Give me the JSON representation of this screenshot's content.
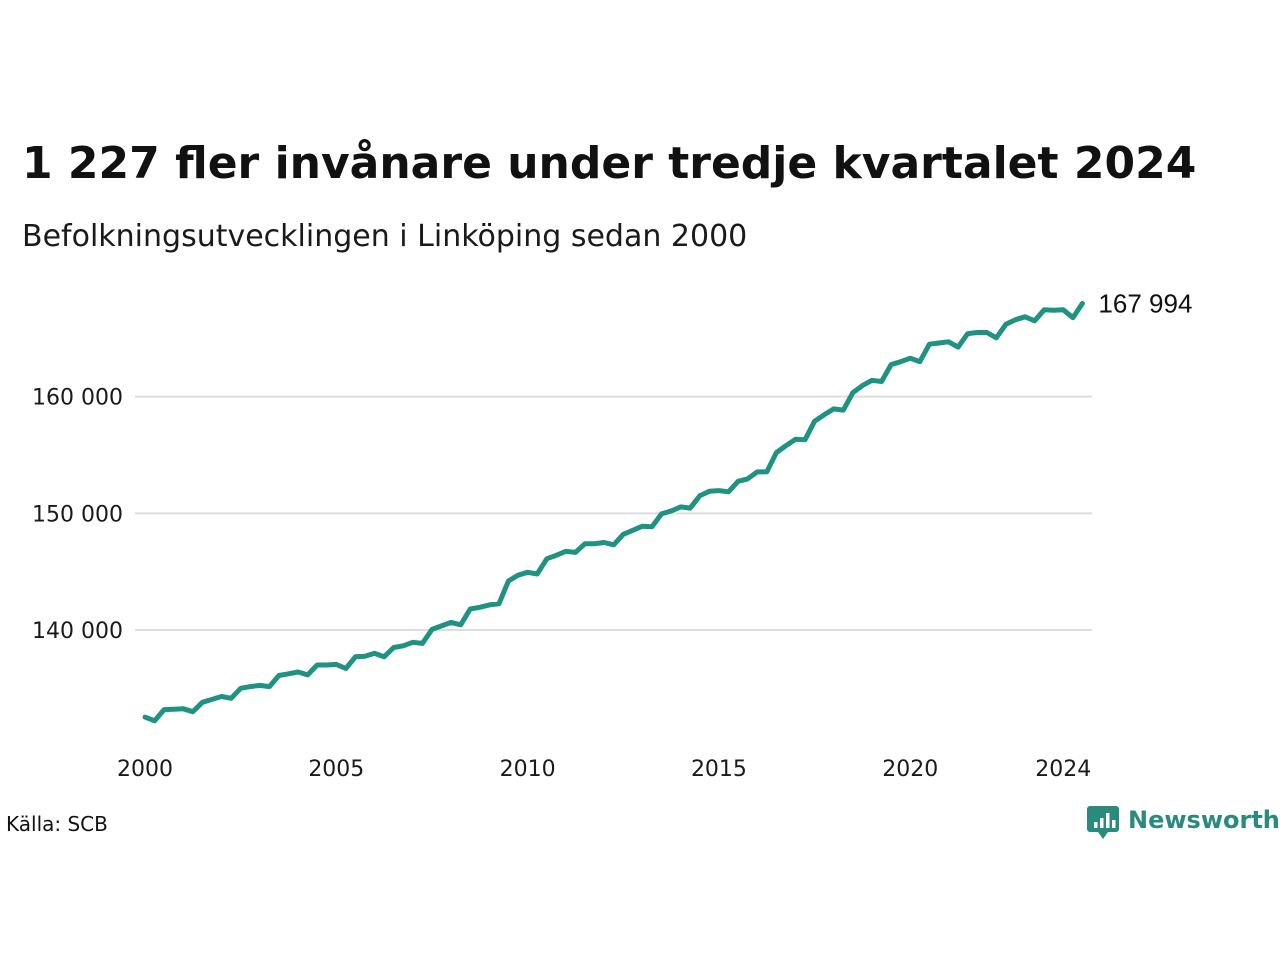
{
  "title": "1 227 fler invånare under tredje kvartalet 2024",
  "subtitle": "Befolkningsutvecklingen i Linköping sedan 2000",
  "source": "Källa: SCB",
  "brand": {
    "name": "Newsworthy",
    "color": "#2a8a7d",
    "icon": "newsworthy-logo-icon"
  },
  "colors": {
    "line": "#1f9281",
    "grid": "#dddddd"
  },
  "chart_data": {
    "type": "line",
    "title": "1 227 fler invånare under tredje kvartalet 2024",
    "subtitle": "Befolkningsutvecklingen i Linköping sedan 2000",
    "xlabel": "",
    "ylabel": "",
    "x_ticks": [
      2000,
      2005,
      2010,
      2015,
      2020,
      2024
    ],
    "x_tick_labels": [
      "2000",
      "2005",
      "2010",
      "2015",
      "2020",
      "2024"
    ],
    "y_ticks": [
      140000,
      150000,
      160000
    ],
    "y_tick_labels": [
      "140 000",
      "150 000",
      "160 000"
    ],
    "xlim": [
      2000,
      2024.75
    ],
    "ylim": [
      131000,
      170000
    ],
    "grid": true,
    "end_label": "167 994",
    "series": [
      {
        "values": [
          132530,
          132220,
          133180,
          133200,
          133250,
          133000,
          133800,
          134050,
          134300,
          134150,
          135000,
          135150,
          135250,
          135150,
          136100,
          136250,
          136400,
          136150,
          137000,
          137000,
          137050,
          136700,
          137700,
          137750,
          138000,
          137700,
          138500,
          138650,
          138950,
          138850,
          140050,
          140350,
          140650,
          140450,
          141800,
          141950,
          142150,
          142250,
          144200,
          144700,
          144950,
          144800,
          146100,
          146400,
          146750,
          146650,
          147400,
          147400,
          147500,
          147300,
          148200,
          148550,
          148900,
          148850,
          149950,
          150200,
          150550,
          150450,
          151500,
          151900,
          151950,
          151850,
          152750,
          152950,
          153550,
          153550,
          155200,
          155800,
          156350,
          156300,
          157900,
          158450,
          158950,
          158850,
          160350,
          160950,
          161400,
          161300,
          162750,
          163000,
          163300,
          163000,
          164500,
          164600,
          164700,
          164250,
          165400,
          165500,
          165500,
          165050,
          166200,
          166600,
          166850,
          166500,
          167450,
          167400,
          167450,
          166767,
          167994
        ]
      }
    ]
  }
}
